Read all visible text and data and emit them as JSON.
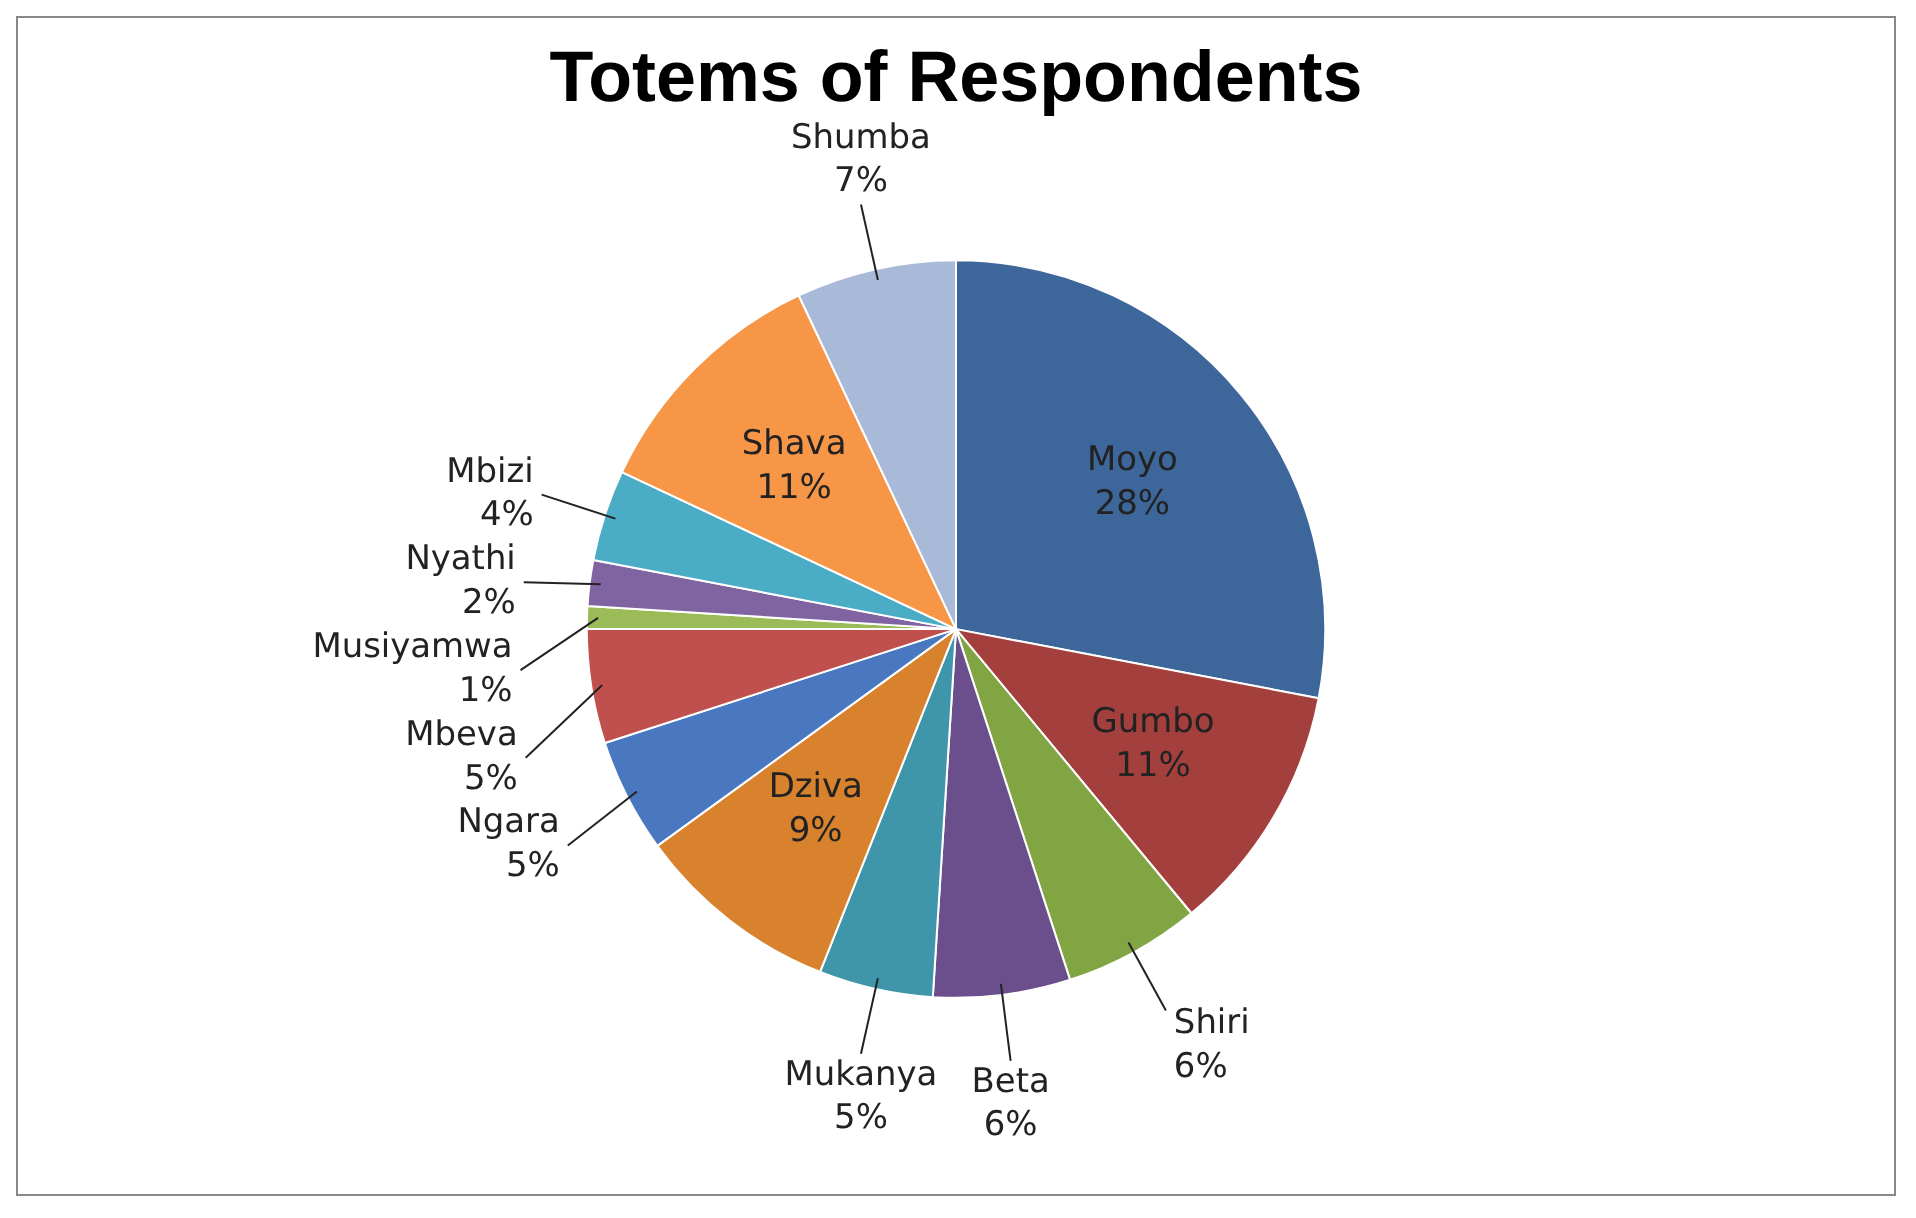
{
  "chart_data": {
    "type": "pie",
    "title": "Totems of Respondents",
    "categories": [
      "Moyo",
      "Gumbo",
      "Shiri",
      "Beta",
      "Mukanya",
      "Dziva",
      "Ngara",
      "Mbeva",
      "Musiyamwa",
      "Nyathi",
      "Mbizi",
      "Shava",
      "Shumba"
    ],
    "values": [
      28,
      11,
      6,
      6,
      5,
      9,
      5,
      5,
      1,
      2,
      4,
      11,
      7
    ],
    "value_labels": [
      "28%",
      "11%",
      "6%",
      "6%",
      "5%",
      "9%",
      "5%",
      "5%",
      "1%",
      "2%",
      "4%",
      "11%",
      "7%"
    ],
    "colors": [
      "#3d679a",
      "#a33f3c",
      "#82a544",
      "#6a4f8c",
      "#3f96ab",
      "#d9822e",
      "#4a78c0",
      "#c0504d",
      "#9bbb59",
      "#8064a2",
      "#4bacc6",
      "#f79646",
      "#a9b9d8"
    ],
    "legend": false
  }
}
